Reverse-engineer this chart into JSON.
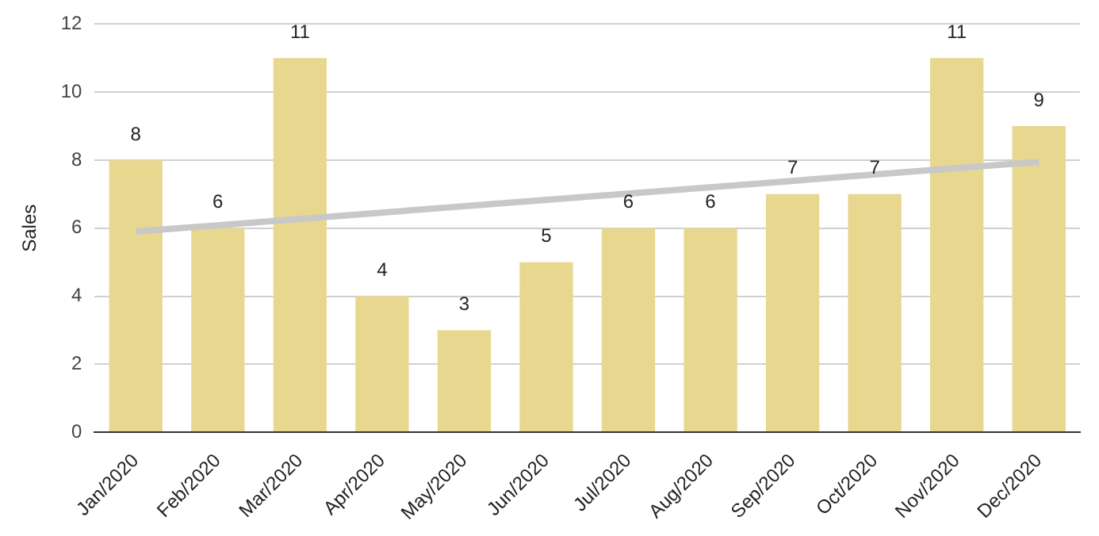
{
  "chart_data": {
    "type": "bar",
    "ylabel": "Sales",
    "categories": [
      "Jan/2020",
      "Feb/2020",
      "Mar/2020",
      "Apr/2020",
      "May/2020",
      "Jun/2020",
      "Jul/2020",
      "Aug/2020",
      "Sep/2020",
      "Oct/2020",
      "Nov/2020",
      "Dec/2020"
    ],
    "series": [
      {
        "color": "#e8d78e",
        "values": [
          8,
          6,
          11,
          4,
          3,
          5,
          6,
          6,
          7,
          7,
          11,
          9
        ],
        "value_labels": [
          "8",
          "6",
          "11",
          "4",
          "3",
          "5",
          "6",
          "6",
          "7",
          "7",
          "11",
          "9"
        ]
      },
      {
        "type": "line",
        "color": "#c8c8c8",
        "x": [
          "Jan/2020",
          "Dec/2020"
        ],
        "values": [
          5.9,
          7.95
        ]
      }
    ],
    "ylim": [
      0,
      12
    ],
    "yticks": [
      0,
      2,
      4,
      6,
      8,
      10,
      12
    ],
    "grid": "y",
    "legend": false
  }
}
